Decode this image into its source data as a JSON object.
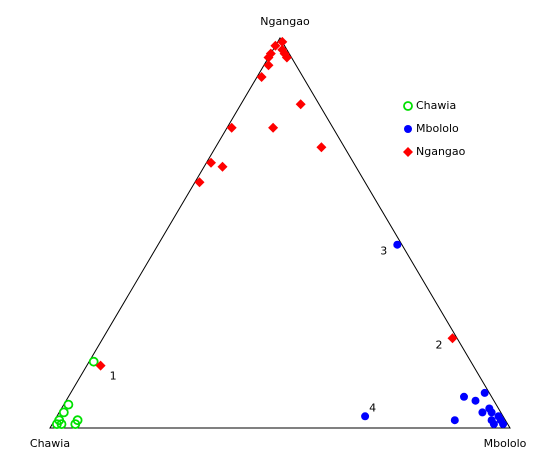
{
  "chart_data": {
    "type": "ternary",
    "axes": [
      "Chawia",
      "Mbololo",
      "Ngangao"
    ],
    "legend": "upper right",
    "series": [
      {
        "name": "Chawia",
        "color": "#00e000",
        "marker": "circle-open",
        "values": [
          [
            0.82,
            0.01,
            0.17
          ],
          [
            0.93,
            0.01,
            0.06
          ],
          [
            0.95,
            0.01,
            0.04
          ],
          [
            0.93,
            0.05,
            0.02
          ],
          [
            0.94,
            0.05,
            0.01
          ],
          [
            0.97,
            0.01,
            0.02
          ],
          [
            0.98,
            0.01,
            0.01
          ],
          [
            0.97,
            0.02,
            0.01
          ]
        ],
        "point_labels": [
          null,
          null,
          null,
          null,
          null,
          null,
          null,
          null
        ]
      },
      {
        "name": "Mbololo",
        "color": "#0000ff",
        "marker": "circle",
        "values": [
          [
            0.01,
            0.52,
            0.47
          ],
          [
            0.3,
            0.67,
            0.03
          ],
          [
            0.01,
            0.9,
            0.09
          ],
          [
            0.06,
            0.86,
            0.08
          ],
          [
            0.04,
            0.89,
            0.07
          ],
          [
            0.02,
            0.93,
            0.05
          ],
          [
            0.04,
            0.92,
            0.04
          ],
          [
            0.02,
            0.94,
            0.04
          ],
          [
            0.01,
            0.96,
            0.03
          ],
          [
            0.01,
            0.97,
            0.02
          ],
          [
            0.01,
            0.98,
            0.01
          ],
          [
            0.03,
            0.95,
            0.02
          ],
          [
            0.11,
            0.87,
            0.02
          ],
          [
            0.03,
            0.96,
            0.01
          ]
        ],
        "point_labels": [
          "3",
          "4",
          null,
          null,
          null,
          null,
          null,
          null,
          null,
          null,
          null,
          null,
          null,
          null
        ]
      },
      {
        "name": "Ngangao",
        "color": "#ff0000",
        "marker": "diamond",
        "values": [
          [
            0.0,
            0.01,
            0.99
          ],
          [
            0.02,
            0.0,
            0.98
          ],
          [
            0.01,
            0.02,
            0.97
          ],
          [
            0.04,
            0.0,
            0.96
          ],
          [
            0.05,
            0.0,
            0.95
          ],
          [
            0.01,
            0.03,
            0.96
          ],
          [
            0.01,
            0.04,
            0.95
          ],
          [
            0.06,
            0.01,
            0.93
          ],
          [
            0.09,
            0.01,
            0.9
          ],
          [
            0.04,
            0.13,
            0.83
          ],
          [
            0.22,
            0.01,
            0.77
          ],
          [
            0.13,
            0.1,
            0.77
          ],
          [
            0.31,
            0.01,
            0.68
          ],
          [
            0.29,
            0.04,
            0.67
          ],
          [
            0.36,
            0.01,
            0.63
          ],
          [
            0.05,
            0.23,
            0.72
          ],
          [
            0.01,
            0.76,
            0.23
          ],
          [
            0.81,
            0.03,
            0.16
          ]
        ],
        "point_labels": [
          null,
          null,
          null,
          null,
          null,
          null,
          null,
          null,
          null,
          null,
          null,
          null,
          null,
          null,
          null,
          null,
          "2",
          "1"
        ]
      }
    ]
  }
}
